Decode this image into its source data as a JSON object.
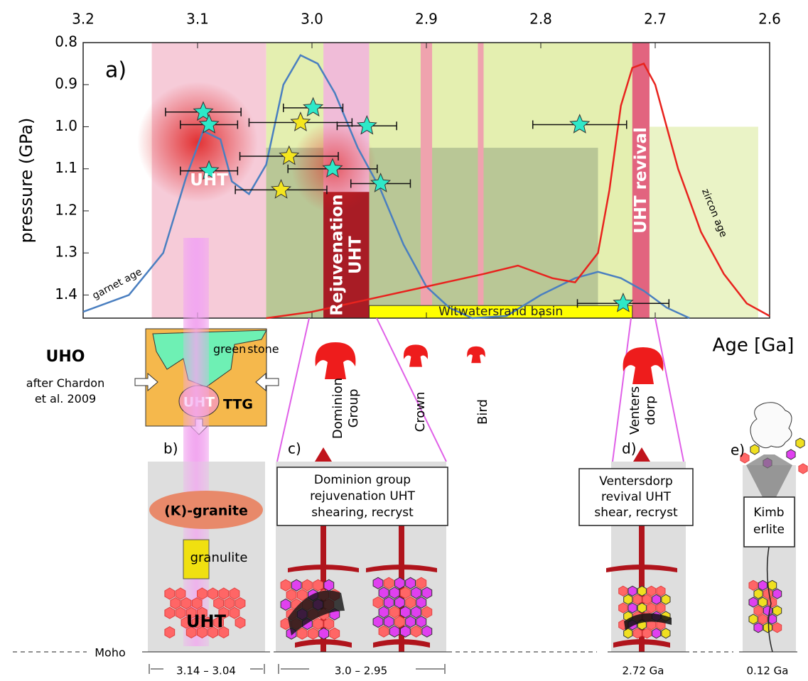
{
  "chart_data": {
    "type": "scatter",
    "panel_label": "a)",
    "ylabel": "pressure (GPa)",
    "xlabel": "Age [Ga]",
    "x_axis_position": "top",
    "y_inverted": true,
    "xlim": [
      3.2,
      2.6
    ],
    "ylim": [
      0.8,
      1.455
    ],
    "xticks": [
      3.2,
      3.1,
      {
        "value": 3.0,
        "label": "3.0"
      },
      2.9,
      2.8,
      2.7,
      2.6
    ],
    "yticks": [
      0.8,
      0.9,
      {
        "value": 1.0,
        "label": "1.0"
      },
      1.1,
      1.2,
      1.3,
      1.4
    ],
    "bands": [
      {
        "x": [
          3.14,
          3.04
        ],
        "y": [
          0.8,
          1.455
        ],
        "color": "#f6cbd8",
        "label": [
          "UHT"
        ]
      },
      {
        "x": [
          3.04,
          2.705
        ],
        "y": [
          0.8,
          1.455
        ],
        "color": "#e4efb0"
      },
      {
        "x": [
          3.04,
          2.75
        ],
        "y": [
          1.05,
          1.455
        ],
        "color": "#b9c796"
      },
      {
        "x": [
          2.99,
          2.95
        ],
        "y": [
          0.8,
          1.16
        ],
        "color": "#f0bcd8"
      },
      {
        "x": [
          2.99,
          2.95
        ],
        "y": [
          1.155,
          1.455
        ],
        "color": "#a81c25",
        "label": [
          "Rejuvenation",
          "UHT"
        ]
      },
      {
        "x": [
          2.905,
          2.895
        ],
        "y": [
          0.8,
          1.455
        ],
        "color": "#efa3ae"
      },
      {
        "x": [
          2.855,
          2.85
        ],
        "y": [
          0.8,
          1.455
        ],
        "color": "#efa3ae"
      },
      {
        "x": [
          2.72,
          2.705
        ],
        "y": [
          0.8,
          1.455
        ],
        "color": "#e2647f",
        "label": [
          "UHT revival"
        ]
      },
      {
        "x": [
          2.705,
          2.61
        ],
        "y": [
          1.0,
          1.455
        ],
        "color": "#eaf3c6"
      },
      {
        "x": [
          2.95,
          2.72
        ],
        "y": [
          1.425,
          1.455
        ],
        "color": "#ffff00",
        "label": [
          "Witwatersrand basin"
        ]
      }
    ],
    "series": [
      {
        "name": "garnet age",
        "kind": "line",
        "color": "#4a7fc0",
        "x": [
          3.2,
          3.16,
          3.13,
          3.11,
          3.095,
          3.08,
          3.07,
          3.055,
          3.04,
          3.025,
          3.01,
          2.995,
          2.98,
          2.96,
          2.94,
          2.92,
          2.9,
          2.88,
          2.86,
          2.83,
          2.8,
          2.77,
          2.75,
          2.73,
          2.71,
          2.69,
          2.67
        ],
        "values": [
          1.44,
          1.4,
          1.3,
          1.12,
          1.01,
          1.03,
          1.13,
          1.16,
          1.09,
          0.9,
          0.83,
          0.85,
          0.92,
          1.05,
          1.15,
          1.28,
          1.38,
          1.43,
          1.455,
          1.45,
          1.4,
          1.36,
          1.345,
          1.36,
          1.39,
          1.43,
          1.455
        ]
      },
      {
        "name": "zircon age",
        "kind": "line",
        "color": "#e8231e",
        "x": [
          3.04,
          3.0,
          2.95,
          2.9,
          2.85,
          2.82,
          2.79,
          2.77,
          2.75,
          2.74,
          2.73,
          2.72,
          2.71,
          2.7,
          2.68,
          2.66,
          2.64,
          2.62,
          2.6
        ],
        "values": [
          1.455,
          1.44,
          1.41,
          1.38,
          1.35,
          1.33,
          1.36,
          1.37,
          1.3,
          1.15,
          0.95,
          0.86,
          0.85,
          0.9,
          1.1,
          1.25,
          1.35,
          1.42,
          1.45
        ]
      },
      {
        "kind": "star",
        "color": "#2ee8c8",
        "x": [
          3.095,
          3.09,
          3.09,
          2.999,
          2.952,
          2.982,
          2.94,
          2.766,
          2.728
        ],
        "values": [
          0.965,
          0.995,
          1.105,
          0.955,
          0.998,
          1.1,
          1.135,
          0.995,
          1.42
        ],
        "xerr": [
          0.033,
          0.025,
          0.025,
          0.026,
          0.026,
          0.039,
          0.026,
          0.041,
          0.04
        ]
      },
      {
        "kind": "star",
        "color": "#f5e61e",
        "x": [
          3.01,
          3.02,
          3.027
        ],
        "values": [
          0.99,
          1.07,
          1.15
        ],
        "xerr": [
          0.045,
          0.043,
          0.04
        ]
      }
    ]
  },
  "diagram": {
    "uho": {
      "title": "UHO",
      "source": [
        "after Chardon",
        "et al. 2009"
      ],
      "greenstone": [
        "green",
        "stone"
      ],
      "uht": "UHT",
      "ttg": "TTG"
    },
    "plumes": [
      [
        "Dominion",
        "Group"
      ],
      [
        "Crown"
      ],
      [
        "Bird"
      ],
      [
        "Venters",
        "dorp"
      ]
    ],
    "panel_b": {
      "label": "b)",
      "granite": "(K)-granite",
      "granulite": "granulite",
      "uht": "UHT",
      "range": "3.14 – 3.04"
    },
    "panel_c": {
      "label": "c)",
      "box": [
        "Dominion group",
        "rejuvenation UHT",
        "shearing, recryst"
      ],
      "range": "3.0 – 2.95"
    },
    "panel_d": {
      "label": "d)",
      "box": [
        "Ventersdorp",
        "revival UHT",
        "shear, recryst"
      ],
      "age": "2.72 Ga"
    },
    "panel_e": {
      "label": "e)",
      "box": [
        "Kimb",
        "erlite"
      ],
      "age": "0.12 Ga"
    },
    "moho": "Moho"
  }
}
